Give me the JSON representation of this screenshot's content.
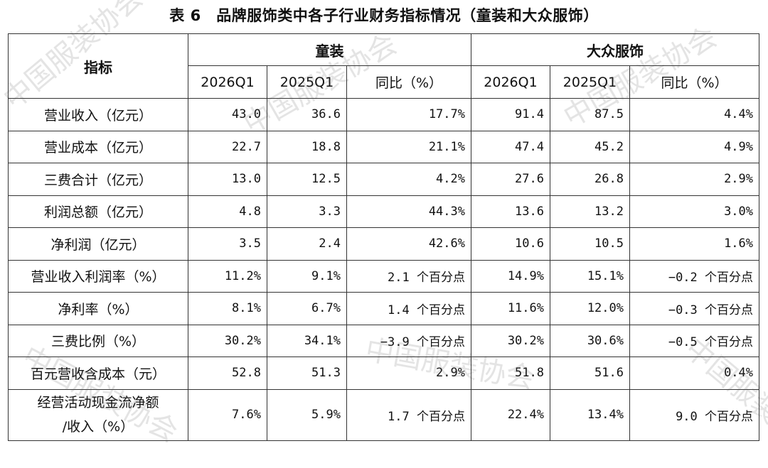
{
  "title": "表 6　品牌服饰类中各子行业财务指标情况（童装和大众服饰）",
  "header": {
    "indicator": "指标",
    "groups": [
      "童装",
      "大众服饰"
    ],
    "subcolumns": [
      "2026Q1",
      "2025Q1",
      "同比（%）",
      "2026Q1",
      "2025Q1",
      "同比（%）"
    ]
  },
  "rows": [
    {
      "label": "营业收入（亿元）",
      "values": [
        "43.0",
        "36.6",
        "17.7%",
        "91.4",
        "87.5",
        "4.4%"
      ]
    },
    {
      "label": "营业成本（亿元）",
      "values": [
        "22.7",
        "18.8",
        "21.1%",
        "47.4",
        "45.2",
        "4.9%"
      ]
    },
    {
      "label": "三费合计（亿元）",
      "values": [
        "13.0",
        "12.5",
        "4.2%",
        "27.6",
        "26.8",
        "2.9%"
      ]
    },
    {
      "label": "利润总额（亿元）",
      "values": [
        "4.8",
        "3.3",
        "44.3%",
        "13.6",
        "13.2",
        "3.0%"
      ]
    },
    {
      "label": "净利润（亿元）",
      "values": [
        "3.5",
        "2.4",
        "42.6%",
        "10.6",
        "10.5",
        "1.6%"
      ]
    },
    {
      "label": "营业收入利润率（%）",
      "values": [
        "11.2%",
        "9.1%",
        "2.1 个百分点",
        "14.9%",
        "15.1%",
        "−0.2 个百分点"
      ]
    },
    {
      "label": "净利率（%）",
      "values": [
        "8.1%",
        "6.7%",
        "1.4 个百分点",
        "11.6%",
        "12.0%",
        "−0.3 个百分点"
      ]
    },
    {
      "label": "三费比例（%）",
      "values": [
        "30.2%",
        "34.1%",
        "−3.9 个百分点",
        "30.2%",
        "30.6%",
        "−0.5 个百分点"
      ]
    },
    {
      "label": "百元营收含成本（元）",
      "values": [
        "52.8",
        "51.3",
        "2.9%",
        "51.8",
        "51.6",
        "0.4%"
      ]
    },
    {
      "label_line1": "经营活动现金流净额",
      "label_line2": "/收入（%）",
      "values": [
        "7.6%",
        "5.9%",
        "1.7 个百分点",
        "22.4%",
        "13.4%",
        "9.0 个百分点"
      ]
    }
  ],
  "watermark": "中国服装协会"
}
